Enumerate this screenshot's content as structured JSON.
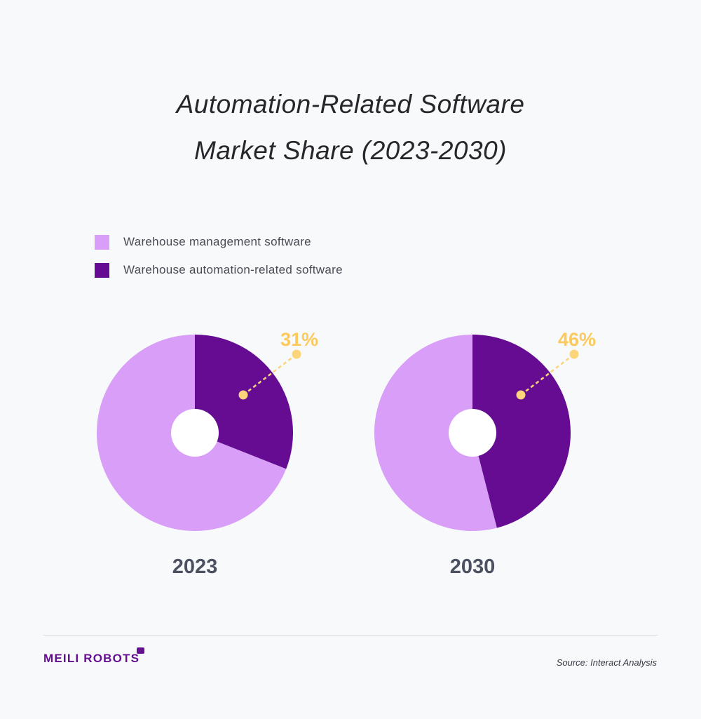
{
  "title_line1": "Automation-Related Software",
  "title_line2": "Market Share (2023-2030)",
  "legend": [
    {
      "label": "Warehouse management software",
      "color": "#d89ef8"
    },
    {
      "label": "Warehouse automation-related software",
      "color": "#650c93"
    }
  ],
  "chart_data": [
    {
      "type": "pie",
      "title": "2023",
      "slices": [
        {
          "name": "Warehouse automation-related software",
          "value": 31,
          "label": "31%",
          "color": "#650c93"
        },
        {
          "name": "Warehouse management software",
          "value": 69,
          "color": "#d89ef8"
        }
      ]
    },
    {
      "type": "pie",
      "title": "2030",
      "slices": [
        {
          "name": "Warehouse automation-related software",
          "value": 46,
          "label": "46%",
          "color": "#650c93"
        },
        {
          "name": "Warehouse management software",
          "value": 54,
          "color": "#d89ef8"
        }
      ]
    }
  ],
  "annotation_color": "#fcd57a",
  "annotation_text_color": "#fcc95c",
  "year_label_color": "#4b5160",
  "footer": {
    "logo_text": "MEILI ROBOTS",
    "source": "Source: Interact Analysis"
  }
}
